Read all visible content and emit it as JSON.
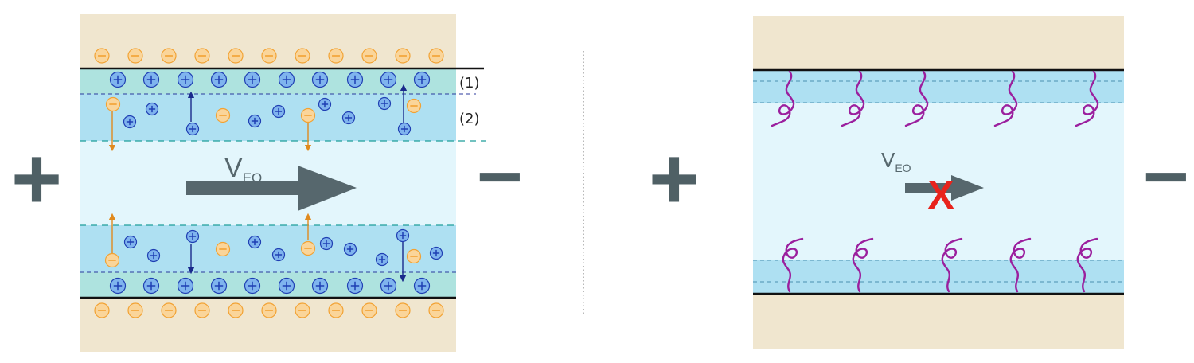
{
  "left_panel": {
    "anode_symbol": "+",
    "cathode_symbol": "−",
    "velocity_label": "V",
    "velocity_subscript": "EO",
    "layer_labels": [
      "(1)",
      "(2)"
    ],
    "cation_symbol": "+",
    "anion_symbol": "−"
  },
  "right_panel": {
    "anode_symbol": "+",
    "cathode_symbol": "−",
    "velocity_label": "V",
    "velocity_subscript": "EO",
    "blocked_mark": "X"
  },
  "colors": {
    "wall": "#f0e6cf",
    "channel": "#e3f6fc",
    "diffuse_layer": "#aee0f2",
    "stern_layer": "#aee3df",
    "cation": "#1f3fb3",
    "anion": "#f2a233",
    "arrow": "#56676d",
    "polymer": "#9b1f9e",
    "blocked": "#e8231c",
    "sign": "#4f6065"
  }
}
